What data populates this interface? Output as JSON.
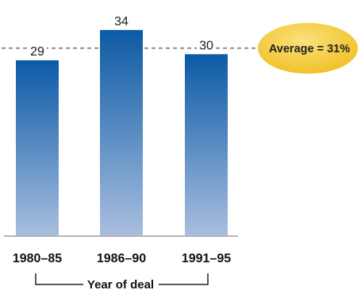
{
  "chart_data": {
    "type": "bar",
    "categories": [
      "1980–85",
      "1986–90",
      "1991–95"
    ],
    "values": [
      29,
      34,
      30
    ],
    "xlabel": "Year of deal",
    "ylim": [
      0,
      34.5
    ],
    "average": {
      "value": 31,
      "label": "Average = 31%"
    },
    "grid": false,
    "colors": {
      "bar_top": "#0b5aa6",
      "bar_bottom": "#a9bedf",
      "badge": "#f3c431"
    }
  }
}
